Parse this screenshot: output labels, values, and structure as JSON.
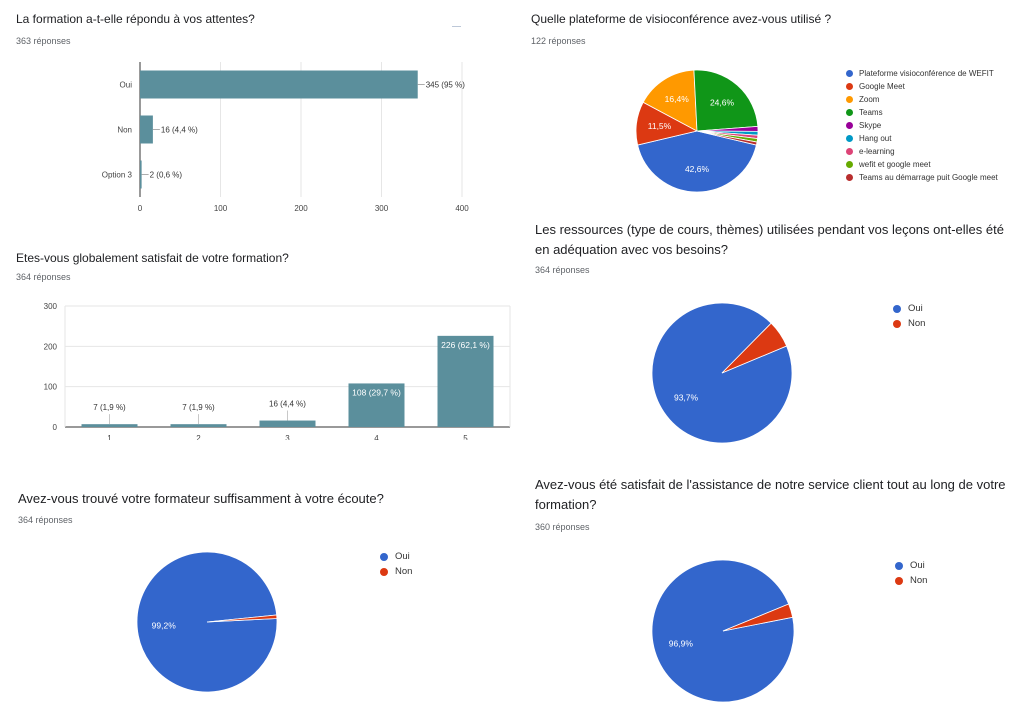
{
  "colors": {
    "bar": "#5b8f9c",
    "slices": [
      "#3366cc",
      "#dc3912",
      "#ff9900",
      "#109618",
      "#990099",
      "#0099c6",
      "#dd4477",
      "#66aa00",
      "#b82e2e"
    ]
  },
  "chart_data": [
    {
      "type": "bar",
      "orientation": "horizontal",
      "title": "La formation a-t-elle répondu à vos attentes?",
      "subtitle": "363 réponses",
      "categories": [
        "Oui",
        "Non",
        "Option 3"
      ],
      "values": [
        345,
        16,
        2
      ],
      "data_labels": [
        "345 (95 %)",
        "16 (4,4 %)",
        "2 (0,6 %)"
      ],
      "xlim": [
        0,
        400
      ],
      "xticks": [
        0,
        100,
        200,
        300,
        400
      ],
      "grid": true
    },
    {
      "type": "pie",
      "title": "Quelle plateforme de visioconférence avez-vous utilisé ?",
      "subtitle": "122 réponses",
      "labels": [
        "Plateforme visioconférence de WEFIT",
        "Google Meet",
        "Zoom",
        "Teams",
        "Skype",
        "Hang out",
        "e-learning",
        "wefit et google meet",
        "Teams au démarrage puit Google meet"
      ],
      "values": [
        42.6,
        11.5,
        16.4,
        24.6,
        1.3,
        1.0,
        0.9,
        0.9,
        0.8
      ],
      "slice_labels": [
        "42,6%",
        "11,5%",
        "16,4%",
        "24,6%",
        "",
        "",
        "",
        "",
        ""
      ],
      "legend": "right"
    },
    {
      "type": "bar",
      "title": "Etes-vous globalement satisfait de votre formation?",
      "subtitle": "364 réponses",
      "categories": [
        "1",
        "2",
        "3",
        "4",
        "5"
      ],
      "values": [
        7,
        7,
        16,
        108,
        226
      ],
      "data_labels": [
        "7 (1,9 %)",
        "7 (1,9 %)",
        "16 (4,4 %)",
        "108 (29,7 %)",
        "226 (62,1 %)"
      ],
      "ylim": [
        0,
        300
      ],
      "yticks": [
        0,
        100,
        200,
        300
      ],
      "grid": true
    },
    {
      "type": "pie",
      "title": "Les ressources (type de cours, thèmes) utilisées pendant vos leçons ont-elles été en adéquation avec vos besoins?",
      "subtitle": "364 réponses",
      "labels": [
        "Oui",
        "Non"
      ],
      "values": [
        93.7,
        6.3
      ],
      "slice_labels": [
        "93,7%",
        ""
      ],
      "legend": "right"
    },
    {
      "type": "pie",
      "title": "Avez-vous trouvé votre formateur suffisamment à votre écoute?",
      "subtitle": "364 réponses",
      "labels": [
        "Oui",
        "Non"
      ],
      "values": [
        99.2,
        0.8
      ],
      "slice_labels": [
        "99,2%",
        ""
      ],
      "legend": "right"
    },
    {
      "type": "pie",
      "title": "Avez-vous été satisfait de l'assistance de notre service client tout au long de votre formation?",
      "subtitle": "360 réponses",
      "labels": [
        "Oui",
        "Non"
      ],
      "values": [
        96.9,
        3.1
      ],
      "slice_labels": [
        "96,9%",
        ""
      ],
      "legend": "right"
    }
  ]
}
